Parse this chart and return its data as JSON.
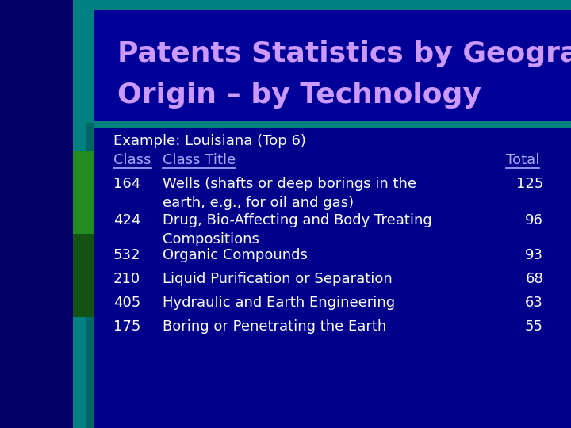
{
  "title_line1": "Patents Statistics by Geographic",
  "title_line2": "Origin – by Technology",
  "title_color": "#cc99ff",
  "slide_bg_color": "#00008B",
  "title_bg_color": "#000099",
  "teal_color": "#008080",
  "example_text": "Example: Louisiana (Top 6)",
  "header_class": "Class",
  "header_title": "Class Title",
  "header_total": "Total",
  "header_color": "#aaaaff",
  "text_color": "#ffffff",
  "rows": [
    {
      "class": "164",
      "title_line1": "Wells (shafts or deep borings in the",
      "title_line2": "earth, e.g., for oil and gas)",
      "total": "125"
    },
    {
      "class": "424",
      "title_line1": "Drug, Bio-Affecting and Body Treating",
      "title_line2": "Compositions",
      "total": "96"
    },
    {
      "class": "532",
      "title_line1": "Organic Compounds",
      "title_line2": "",
      "total": "93"
    },
    {
      "class": "210",
      "title_line1": "Liquid Purification or Separation",
      "title_line2": "",
      "total": "68"
    },
    {
      "class": "405",
      "title_line1": "Hydraulic and Earth Engineering",
      "title_line2": "",
      "total": "63"
    },
    {
      "class": "175",
      "title_line1": "Boring or Penetrating the Earth",
      "title_line2": "",
      "total": "55"
    }
  ],
  "left_green_color": "#228B22",
  "dark_left_color": "#000066"
}
